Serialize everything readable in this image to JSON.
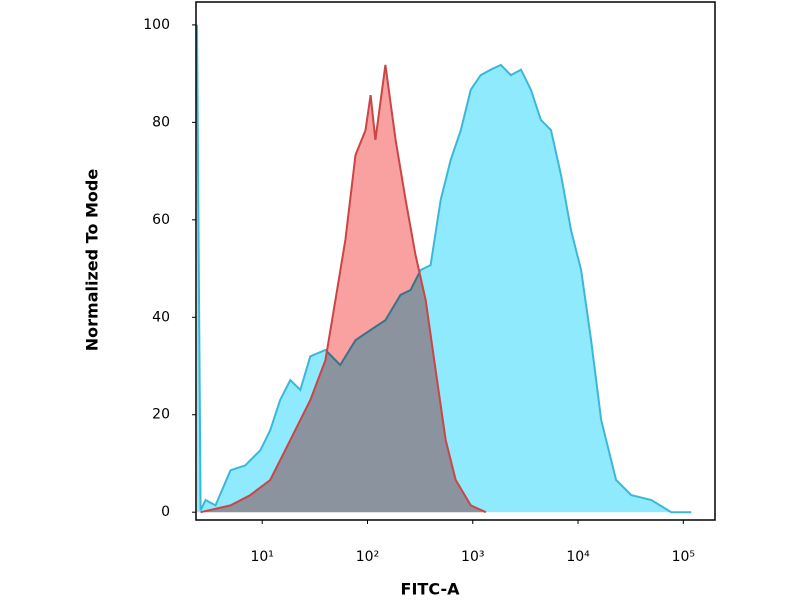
{
  "chart_data": {
    "type": "area",
    "x_label": "FITC-A",
    "y_label": "Normalized To Mode",
    "xscale": "log",
    "xlim": [
      2.35,
      200000
    ],
    "ylim": [
      -1.6,
      104.7
    ],
    "xticks": [
      {
        "value": 10,
        "label": "10¹"
      },
      {
        "value": 100,
        "label": "10²"
      },
      {
        "value": 1000,
        "label": "10³"
      },
      {
        "value": 10000,
        "label": "10⁴"
      },
      {
        "value": 100000,
        "label": "10⁵"
      }
    ],
    "yticks": [
      0,
      20,
      40,
      60,
      80,
      100
    ],
    "series": [
      {
        "color": "#3bb7d9",
        "fill": "#8eeafc",
        "x": [
          2.4,
          2.6,
          2.9,
          3.6,
          5.0,
          6.9,
          9.6,
          11.9,
          14.8,
          18.5,
          23,
          28.6,
          39.8,
          55,
          76.9,
          107,
          148,
          206,
          257,
          320,
          398,
          496,
          617,
          769,
          957,
          1190,
          1480,
          1850,
          2300,
          2870,
          3570,
          4440,
          5530,
          6890,
          8570,
          10700,
          13300,
          16600,
          23000,
          32000,
          49600,
          76900,
          119000
        ],
        "values": [
          100,
          0.4,
          2.5,
          1.4,
          8.6,
          9.6,
          12.7,
          16.8,
          23,
          27.1,
          25.1,
          32,
          33.3,
          30.2,
          35.3,
          37.4,
          39.4,
          44.6,
          45.6,
          49.7,
          50.7,
          64.1,
          72.3,
          78.4,
          86.7,
          89.7,
          90.8,
          91.8,
          89.7,
          90.8,
          86.7,
          80.5,
          78.4,
          69.2,
          57.9,
          49.7,
          35.3,
          18.9,
          6.6,
          3.5,
          2.5,
          0,
          0
        ]
      },
      {
        "color": "#cc4444",
        "fill": "#f9a0a0",
        "x": [
          2.6,
          5.0,
          7.7,
          11.9,
          18.5,
          28.6,
          39.8,
          49.6,
          61.7,
          76.9,
          95.7,
          107,
          119,
          148,
          185,
          230,
          286,
          357,
          444,
          553,
          689,
          957,
          1330
        ],
        "values": [
          0,
          1.4,
          3.5,
          6.6,
          14.8,
          23,
          31.2,
          43.5,
          55.9,
          73.3,
          78.4,
          85.6,
          76.4,
          91.8,
          76.4,
          64.1,
          52.8,
          43.5,
          29.2,
          14.8,
          6.6,
          1.4,
          0
        ]
      }
    ]
  }
}
